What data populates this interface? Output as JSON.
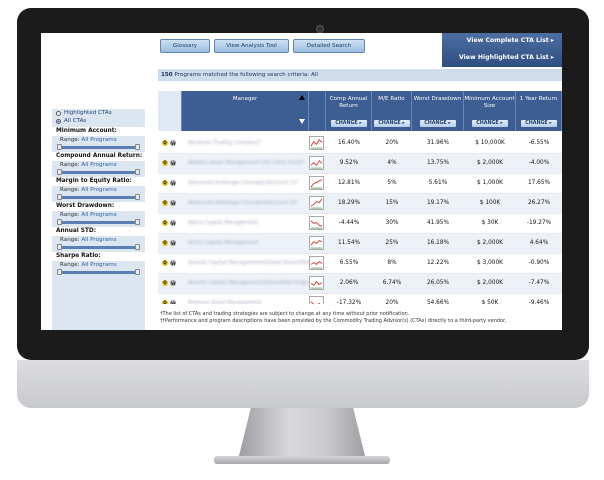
{
  "toolbar": {
    "glossary": "Glossary",
    "view_analysis_tool": "View Analysis Tool",
    "detailed_search": "Detailed Search"
  },
  "cta_links": {
    "complete": "View Complete CTA List ▸",
    "highlighted": "View Highlighted CTA List ▸"
  },
  "match": {
    "count": "150",
    "text": "Programs matched the following search criteria: All"
  },
  "sidebar": {
    "radio_highlighted": "Highlighted CTAs",
    "radio_all": "All CTAs",
    "filters": [
      {
        "label": "Minimum Account:",
        "range_label": "Range:",
        "range_value": "All Programs"
      },
      {
        "label": "Compound Annual Return:",
        "range_label": "Range:",
        "range_value": "All Programs"
      },
      {
        "label": "Margin to Equity Ratio:",
        "range_label": "Range:",
        "range_value": "All Programs"
      },
      {
        "label": "Worst Drawdown:",
        "range_label": "Range:",
        "range_value": "All Programs"
      },
      {
        "label": "Annual STD:",
        "range_label": "Range:",
        "range_value": "All Programs"
      },
      {
        "label": "Sharpe Ratio:",
        "range_label": "Range:",
        "range_value": "All Programs"
      }
    ]
  },
  "table": {
    "headers": {
      "manager": "Manager",
      "comp_annual_return": "Comp Annual Return",
      "me_ratio": "M/E Ratio",
      "worst_drawdown": "Worst Drawdown",
      "min_account": "Minimum Account Size",
      "one_year_return": "1 Year Return"
    },
    "change_label": "CHANGE ▸",
    "rows": [
      {
        "manager": "Abraham Trading Company*",
        "car": "16.40%",
        "me": "20%",
        "dd": "31.96%",
        "min": "$ 10,000K",
        "ret": "-6.55%"
      },
      {
        "manager": "Abbotts Asset Management Ltd (Ultra Fund)*",
        "car": "9.52%",
        "me": "4%",
        "dd": "13.75%",
        "min": "$ 2,000K",
        "ret": "-4.00%"
      },
      {
        "manager": "Advanced Arbitrage Concepts(Account 1)*",
        "car": "12.81%",
        "me": "5%",
        "dd": "5.61%",
        "min": "$ 1,000K",
        "ret": "17.65%"
      },
      {
        "manager": "Advanced Arbitrage Concepts(Account 2)*",
        "car": "18.29%",
        "me": "15%",
        "dd": "19.17%",
        "min": "$ 100K",
        "ret": "26.27%"
      },
      {
        "manager": "Alpha Capital Management",
        "car": "-4.44%",
        "me": "30%",
        "dd": "41.95%",
        "min": "$ 30K",
        "ret": "-19.27%"
      },
      {
        "manager": "Arctic Capital Management",
        "car": "11.54%",
        "me": "25%",
        "dd": "16.18%",
        "min": "$ 2,000K",
        "ret": "4.64%"
      },
      {
        "manager": "Aventis Capital Management(Global Diversified)",
        "car": "6.55%",
        "me": "8%",
        "dd": "12.22%",
        "min": "$ 3,000K",
        "ret": "-0.90%"
      },
      {
        "manager": "Aventis Capital Management(Diversified Program)*",
        "car": "2.06%",
        "me": "6.74%",
        "dd": "26.05%",
        "min": "$ 2,000K",
        "ret": "-7.47%"
      },
      {
        "manager": "Brennan Asset Management",
        "car": "-17.32%",
        "me": "20%",
        "dd": "54.66%",
        "min": "$ 50K",
        "ret": "-9.46%"
      }
    ],
    "icon_q": "Q",
    "icon_w": "W"
  },
  "footer": {
    "line1": "†The list of CTAs and trading strategies are subject to change at any time without prior notification.",
    "line2": "††Performance and program descriptions have been provided by the Commodity Trading Advisor(s) (CTAs) directly to a third-party vendor,"
  }
}
